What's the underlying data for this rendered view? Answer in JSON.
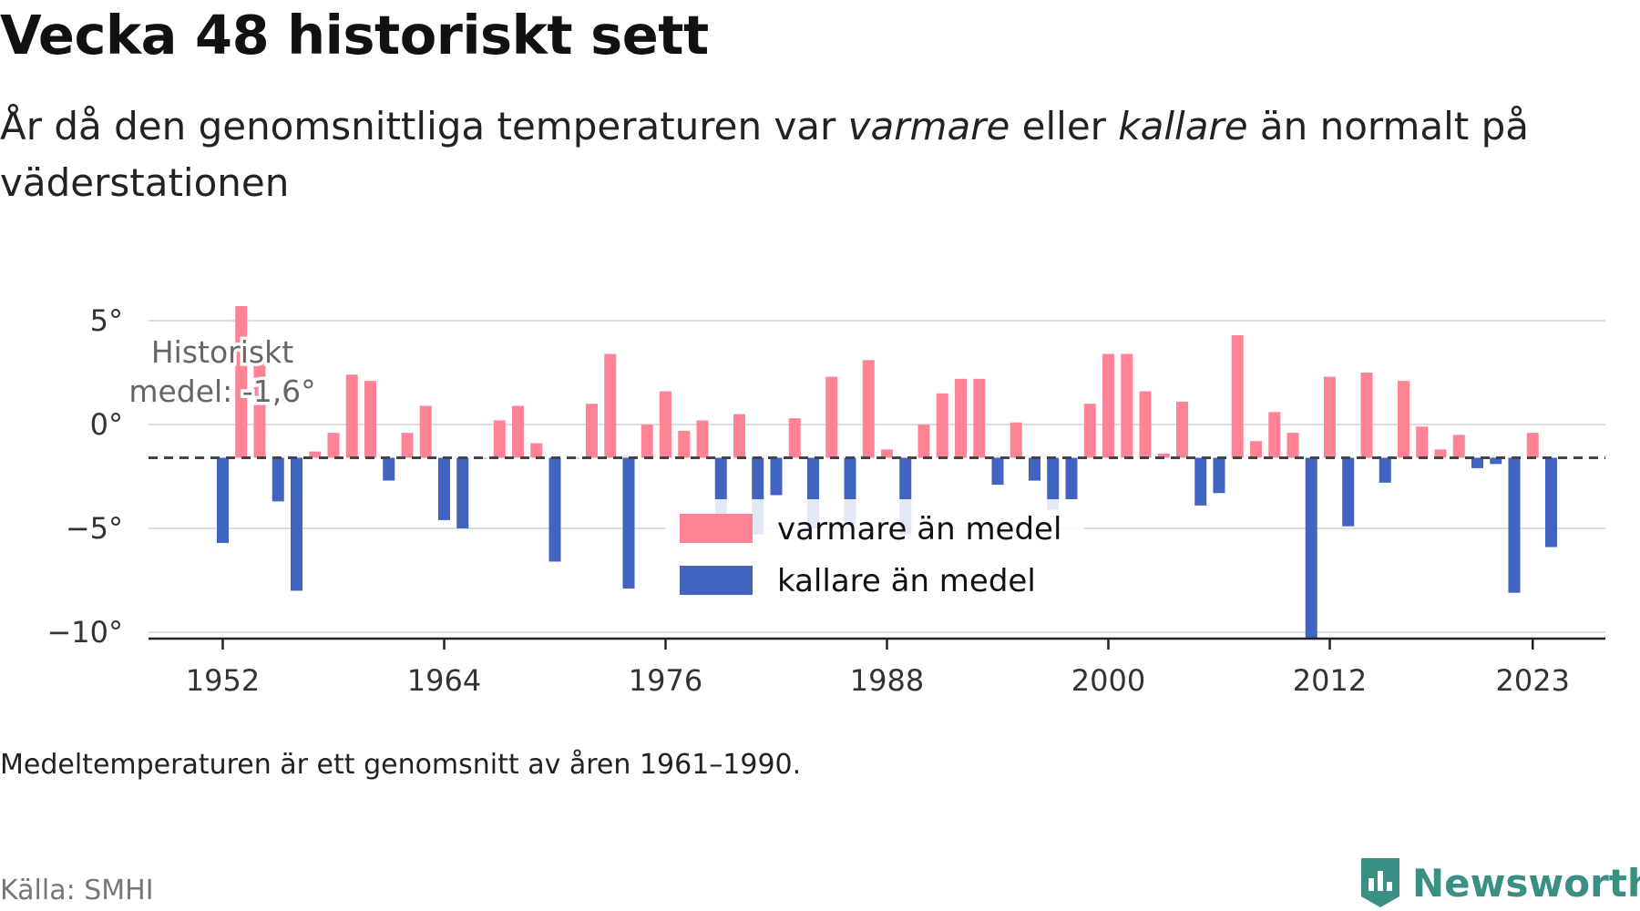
{
  "title": "Vecka 48 historiskt sett",
  "subtitle": {
    "part1": "År då den genomsnittliga temperaturen var ",
    "warm": "varmare",
    "part2": " eller ",
    "cold": "kallare",
    "part3": " än normalt på väderstationen"
  },
  "note": "Medeltemperaturen är ett genomsnitt av åren 1961–1990.",
  "source": "Källa: SMHI",
  "brand": "Newsworthy",
  "colors": {
    "warm": "#ff8394",
    "cold": "#4163c2",
    "brand": "#3a8f84"
  },
  "chart_data": {
    "type": "bar",
    "baseline": -1.6,
    "baseline_label_line1": "Historiskt",
    "baseline_label_line2": "medel: -1,6°",
    "ylim": [
      -11,
      5.7
    ],
    "yticks": [
      5,
      0,
      -5,
      -10
    ],
    "ytick_labels": [
      "5°",
      "0°",
      "−5°",
      "−10°"
    ],
    "xticks": [
      1952,
      1964,
      1976,
      1988,
      2000,
      2012,
      2023
    ],
    "xtick_labels": [
      "1952",
      "1964",
      "1976",
      "1988",
      "2000",
      "2012",
      "2023"
    ],
    "legend": [
      "varmare än medel",
      "kallare än medel"
    ],
    "legend_position": "center",
    "series": [
      {
        "year": 1952,
        "value": -5.7
      },
      {
        "year": 1953,
        "value": 5.7
      },
      {
        "year": 1954,
        "value": 3.3
      },
      {
        "year": 1955,
        "value": -3.7
      },
      {
        "year": 1956,
        "value": -8.0
      },
      {
        "year": 1957,
        "value": -1.3
      },
      {
        "year": 1958,
        "value": -0.4
      },
      {
        "year": 1959,
        "value": 2.4
      },
      {
        "year": 1960,
        "value": 2.1
      },
      {
        "year": 1961,
        "value": -2.7
      },
      {
        "year": 1962,
        "value": -0.4
      },
      {
        "year": 1963,
        "value": 0.9
      },
      {
        "year": 1964,
        "value": -4.6
      },
      {
        "year": 1965,
        "value": -5.0
      },
      {
        "year": 1966,
        "value": -1.6
      },
      {
        "year": 1967,
        "value": 0.2
      },
      {
        "year": 1968,
        "value": 0.9
      },
      {
        "year": 1969,
        "value": -0.9
      },
      {
        "year": 1970,
        "value": -6.6
      },
      {
        "year": 1971,
        "value": -1.6
      },
      {
        "year": 1972,
        "value": 1.0
      },
      {
        "year": 1973,
        "value": 3.4
      },
      {
        "year": 1974,
        "value": -7.9
      },
      {
        "year": 1975,
        "value": 0.0
      },
      {
        "year": 1976,
        "value": 1.6
      },
      {
        "year": 1977,
        "value": -0.3
      },
      {
        "year": 1978,
        "value": 0.2
      },
      {
        "year": 1979,
        "value": -4.3
      },
      {
        "year": 1980,
        "value": 0.5
      },
      {
        "year": 1981,
        "value": -5.3
      },
      {
        "year": 1982,
        "value": -3.4
      },
      {
        "year": 1983,
        "value": 0.3
      },
      {
        "year": 1984,
        "value": -5.0
      },
      {
        "year": 1985,
        "value": 2.3
      },
      {
        "year": 1986,
        "value": -4.8
      },
      {
        "year": 1987,
        "value": 3.1
      },
      {
        "year": 1988,
        "value": -1.2
      },
      {
        "year": 1989,
        "value": -5.3
      },
      {
        "year": 1990,
        "value": 0.0
      },
      {
        "year": 1991,
        "value": 1.5
      },
      {
        "year": 1992,
        "value": 2.2
      },
      {
        "year": 1993,
        "value": 2.2
      },
      {
        "year": 1994,
        "value": -2.9
      },
      {
        "year": 1995,
        "value": 0.1
      },
      {
        "year": 1996,
        "value": -2.7
      },
      {
        "year": 1997,
        "value": -4.1
      },
      {
        "year": 1998,
        "value": -3.6
      },
      {
        "year": 1999,
        "value": 1.0
      },
      {
        "year": 2000,
        "value": 3.4
      },
      {
        "year": 2001,
        "value": 3.4
      },
      {
        "year": 2002,
        "value": 1.6
      },
      {
        "year": 2003,
        "value": -1.4
      },
      {
        "year": 2004,
        "value": 1.1
      },
      {
        "year": 2005,
        "value": -3.9
      },
      {
        "year": 2006,
        "value": -3.3
      },
      {
        "year": 2007,
        "value": 4.3
      },
      {
        "year": 2008,
        "value": -0.8
      },
      {
        "year": 2009,
        "value": 0.6
      },
      {
        "year": 2010,
        "value": -0.4
      },
      {
        "year": 2011,
        "value": -10.3
      },
      {
        "year": 2012,
        "value": 2.3
      },
      {
        "year": 2013,
        "value": -4.9
      },
      {
        "year": 2014,
        "value": 2.5
      },
      {
        "year": 2015,
        "value": -2.8
      },
      {
        "year": 2016,
        "value": 2.1
      },
      {
        "year": 2017,
        "value": -0.1
      },
      {
        "year": 2018,
        "value": -1.2
      },
      {
        "year": 2019,
        "value": -0.5
      },
      {
        "year": 2020,
        "value": -2.1
      },
      {
        "year": 2021,
        "value": -1.9
      },
      {
        "year": 2022,
        "value": -8.1
      },
      {
        "year": 2023,
        "value": -0.4
      },
      {
        "year": 2024,
        "value": -5.9
      }
    ]
  }
}
